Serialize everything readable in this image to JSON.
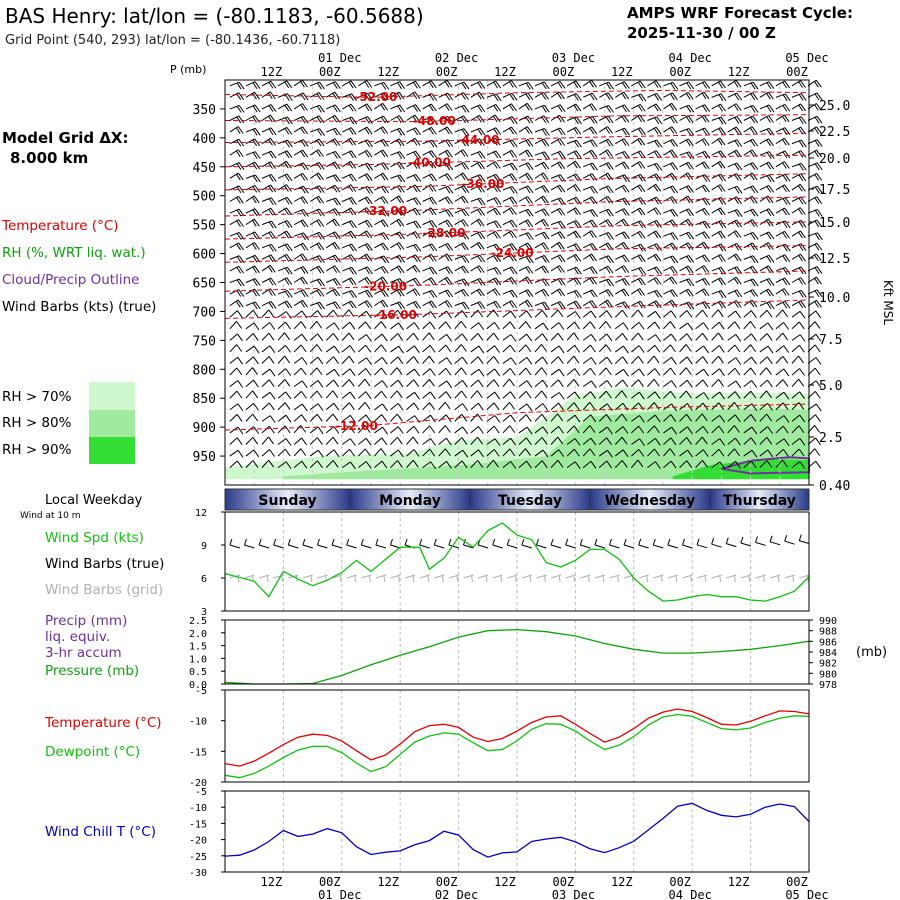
{
  "header": {
    "title": "BAS Henry:  lat/lon = (-80.1183, -60.5688)",
    "subtitle": "Grid Point (540, 293) lat/lon = (-80.1436, -60.7118)",
    "cycle_line1": "AMPS WRF Forecast Cycle:",
    "cycle_line2": "2025-11-30 / 00  Z"
  },
  "left_panel": {
    "model_grid_line1": "Model Grid ΔX:",
    "model_grid_line2": "8.000 km",
    "legend_temperature": "Temperature (°C)",
    "legend_rh": "RH (%, WRT liq. wat.)",
    "legend_cloud": "Cloud/Precip Outline",
    "legend_wind": "Wind Barbs (kts) (true)",
    "rh_70": "RH > 70%",
    "rh_80": "RH > 80%",
    "rh_90": "RH > 90%"
  },
  "colors": {
    "temperature": "#e00000",
    "dewpoint": "#10c010",
    "rh_line": "#10a010",
    "cloud": "#7030a0",
    "windchill": "#0000c0",
    "rh70": "#cff8cf",
    "rh80": "#a0eaa0",
    "rh90": "#33dd33",
    "grid_barbs": "#b0b0b0"
  },
  "time_axis": {
    "top_hours": [
      "12Z",
      "00Z",
      "12Z",
      "00Z",
      "12Z",
      "00Z",
      "12Z",
      "00Z",
      "12Z",
      "00Z"
    ],
    "top_dates": [
      "01 Dec",
      "02 Dec",
      "03 Dec",
      "04 Dec",
      "05 Dec"
    ],
    "bottom_hours": [
      "12Z",
      "00Z",
      "12Z",
      "00Z",
      "12Z",
      "00Z",
      "12Z",
      "00Z",
      "12Z",
      "00Z"
    ],
    "bottom_dates": [
      "01 Dec",
      "02 Dec",
      "03 Dec",
      "04 Dec",
      "05 Dec"
    ]
  },
  "weekday_band": {
    "label": "Local Weekday",
    "sublabel": "Wind at 10 m",
    "days": [
      "Sunday",
      "Monday",
      "Tuesday",
      "Wednesday",
      "Thursday"
    ]
  },
  "chart_data": [
    {
      "type": "cross-section",
      "id": "main",
      "ylabel": "P (mb)",
      "right_axis_label": "Kft MSL",
      "pressure_ticks": [
        350,
        400,
        450,
        500,
        550,
        600,
        650,
        700,
        750,
        800,
        850,
        900,
        950
      ],
      "kft_ticks": [
        "25.0",
        "22.5",
        "20.0",
        "17.5",
        "15.0",
        "12.5",
        "10.0",
        "7.5",
        "5.0",
        "2.5",
        "0.40"
      ],
      "x_hours_range": [
        0,
        120
      ],
      "temperature_contours": [
        {
          "label": "-52.00",
          "label_hour": 31,
          "points": [
            [
              0,
              325
            ],
            [
              30,
              330
            ],
            [
              60,
              322
            ],
            [
              90,
              318
            ],
            [
              120,
              322
            ]
          ]
        },
        {
          "label": "-48.00",
          "label_hour": 43,
          "points": [
            [
              0,
              370
            ],
            [
              40,
              372
            ],
            [
              80,
              362
            ],
            [
              120,
              360
            ]
          ]
        },
        {
          "label": "-44.00",
          "label_hour": 52,
          "points": [
            [
              0,
              408
            ],
            [
              40,
              406
            ],
            [
              80,
              398
            ],
            [
              120,
              392
            ]
          ]
        },
        {
          "label": "-40.00",
          "label_hour": 42,
          "points": [
            [
              0,
              450
            ],
            [
              30,
              446
            ],
            [
              70,
              436
            ],
            [
              120,
              430
            ]
          ]
        },
        {
          "label": "-36.00",
          "label_hour": 53,
          "points": [
            [
              0,
              490
            ],
            [
              40,
              484
            ],
            [
              80,
              470
            ],
            [
              120,
              462
            ]
          ]
        },
        {
          "label": "-32.00",
          "label_hour": 33,
          "points": [
            [
              0,
              535
            ],
            [
              40,
              525
            ],
            [
              80,
              510
            ],
            [
              120,
              502
            ]
          ]
        },
        {
          "label": "-28.00",
          "label_hour": 45,
          "points": [
            [
              0,
              575
            ],
            [
              40,
              566
            ],
            [
              80,
              552
            ],
            [
              120,
              545
            ]
          ]
        },
        {
          "label": "-24.00",
          "label_hour": 59,
          "points": [
            [
              0,
              615
            ],
            [
              40,
              606
            ],
            [
              80,
              592
            ],
            [
              120,
              586
            ]
          ]
        },
        {
          "label": "-20.00",
          "label_hour": 33,
          "points": [
            [
              0,
              665
            ],
            [
              40,
              655
            ],
            [
              80,
              640
            ],
            [
              120,
              630
            ]
          ]
        },
        {
          "label": "-16.00",
          "label_hour": 35,
          "points": [
            [
              0,
              712
            ],
            [
              40,
              705
            ],
            [
              80,
              692
            ],
            [
              120,
              680
            ]
          ]
        },
        {
          "label": "-12.00",
          "label_hour": 27,
          "points": [
            [
              0,
              905
            ],
            [
              30,
              897
            ],
            [
              60,
              875
            ],
            [
              90,
              866
            ],
            [
              120,
              860
            ]
          ]
        }
      ],
      "rh70_region": [
        [
          0,
          970
        ],
        [
          20,
          950
        ],
        [
          38,
          945
        ],
        [
          48,
          922
        ],
        [
          60,
          918
        ],
        [
          72,
          845
        ],
        [
          82,
          832
        ],
        [
          96,
          842
        ],
        [
          108,
          840
        ],
        [
          120,
          842
        ],
        [
          120,
          990
        ],
        [
          0,
          990
        ]
      ],
      "rh80_region": [
        [
          12,
          985
        ],
        [
          30,
          975
        ],
        [
          50,
          965
        ],
        [
          66,
          950
        ],
        [
          75,
          882
        ],
        [
          90,
          872
        ],
        [
          110,
          868
        ],
        [
          120,
          870
        ],
        [
          120,
          990
        ],
        [
          12,
          990
        ]
      ],
      "rh90_region": [
        [
          92,
          985
        ],
        [
          100,
          965
        ],
        [
          112,
          955
        ],
        [
          120,
          957
        ],
        [
          120,
          990
        ],
        [
          92,
          990
        ]
      ],
      "cloud_outline": [
        [
          102,
          972
        ],
        [
          108,
          958
        ],
        [
          116,
          952
        ],
        [
          120,
          954
        ],
        [
          120,
          978
        ],
        [
          108,
          980
        ]
      ]
    },
    {
      "type": "line",
      "id": "wind",
      "ylim": [
        3,
        12
      ],
      "yticks": [
        "12",
        "9",
        "6",
        "3"
      ],
      "legend": [
        "Wind Spd (kts)",
        "Wind Barbs (true)",
        "Wind Barbs (grid)"
      ],
      "series": [
        {
          "name": "Wind Spd (kts)",
          "x": [
            0,
            6,
            9,
            12,
            15,
            18,
            21,
            24,
            27,
            30,
            36,
            40,
            42,
            45,
            48,
            51,
            54,
            57,
            60,
            63,
            66,
            69,
            72,
            75,
            78,
            81,
            84,
            87,
            90,
            93,
            96,
            99,
            102,
            105,
            108,
            111,
            114,
            117,
            120
          ],
          "values": [
            6.4,
            5.7,
            4.3,
            6.6,
            5.9,
            5.3,
            5.8,
            6.5,
            7.6,
            6.6,
            8.8,
            8.8,
            6.8,
            7.8,
            9.7,
            8.8,
            10.3,
            11.0,
            9.9,
            9.5,
            7.4,
            7.0,
            7.6,
            8.6,
            8.6,
            7.7,
            6.0,
            4.8,
            3.9,
            4.0,
            4.3,
            4.5,
            4.3,
            4.3,
            4.0,
            3.9,
            4.3,
            4.8,
            6.1
          ]
        }
      ]
    },
    {
      "type": "line",
      "id": "precip_pressure",
      "ylim": [
        0.0,
        2.5
      ],
      "yticks": [
        "2.5",
        "2.0",
        "1.5",
        "1.0",
        "0.5",
        "0.0"
      ],
      "right_yticks": [
        "990",
        "988",
        "986",
        "984",
        "982",
        "980",
        "978"
      ],
      "right_ylim": [
        978,
        990
      ],
      "right_label": "(mb)",
      "legend": [
        "Precip (mm)",
        "liq. equiv.",
        "3-hr accum",
        "Pressure (mb)"
      ],
      "series": [
        {
          "name": "Pressure (mb)",
          "x": [
            0,
            6,
            12,
            18,
            24,
            30,
            36,
            42,
            48,
            54,
            60,
            66,
            72,
            78,
            84,
            90,
            96,
            102,
            108,
            114,
            120
          ],
          "values": [
            978.3,
            978.0,
            978.0,
            978.1,
            979.6,
            981.6,
            983.4,
            985.0,
            986.8,
            988.0,
            988.2,
            987.8,
            987.0,
            985.6,
            984.5,
            983.8,
            983.8,
            984.1,
            984.5,
            985.2,
            986.0
          ]
        }
      ]
    },
    {
      "type": "line",
      "id": "temperature",
      "ylim": [
        -20,
        -5
      ],
      "yticks": [
        "-5",
        "-10",
        "-15",
        "-20"
      ],
      "legend": [
        "Temperature (°C)",
        "Dewpoint (°C)"
      ],
      "series": [
        {
          "name": "Temperature (°C)",
          "x": [
            0,
            3,
            6,
            9,
            12,
            15,
            18,
            21,
            24,
            27,
            30,
            33,
            36,
            39,
            42,
            45,
            48,
            51,
            54,
            57,
            60,
            63,
            66,
            69,
            72,
            75,
            78,
            81,
            84,
            87,
            90,
            93,
            96,
            99,
            102,
            105,
            108,
            111,
            114,
            117,
            120
          ],
          "values": [
            -17.0,
            -17.4,
            -16.6,
            -15.3,
            -13.9,
            -12.7,
            -12.2,
            -12.4,
            -13.3,
            -14.9,
            -16.4,
            -15.6,
            -13.8,
            -11.8,
            -10.8,
            -10.6,
            -11.1,
            -12.7,
            -13.4,
            -12.9,
            -11.7,
            -10.3,
            -9.4,
            -9.2,
            -10.6,
            -12.1,
            -13.5,
            -12.7,
            -11.3,
            -9.6,
            -8.6,
            -8.1,
            -8.5,
            -9.5,
            -10.6,
            -10.7,
            -10.1,
            -9.2,
            -8.4,
            -8.5,
            -8.9
          ]
        },
        {
          "name": "Dewpoint (°C)",
          "x": [
            0,
            3,
            6,
            9,
            12,
            15,
            18,
            21,
            24,
            27,
            30,
            33,
            36,
            39,
            42,
            45,
            48,
            51,
            54,
            57,
            60,
            63,
            66,
            69,
            72,
            75,
            78,
            81,
            84,
            87,
            90,
            93,
            96,
            99,
            102,
            105,
            108,
            111,
            114,
            117,
            120
          ],
          "values": [
            -18.9,
            -19.3,
            -18.6,
            -17.4,
            -16.0,
            -14.8,
            -14.2,
            -14.2,
            -15.2,
            -16.9,
            -18.3,
            -17.5,
            -15.5,
            -13.5,
            -12.5,
            -12.0,
            -12.2,
            -13.6,
            -14.9,
            -14.7,
            -13.3,
            -11.4,
            -10.5,
            -10.6,
            -11.7,
            -13.3,
            -14.7,
            -14.0,
            -12.6,
            -10.7,
            -9.4,
            -9.0,
            -9.3,
            -10.3,
            -11.3,
            -11.5,
            -11.2,
            -10.3,
            -9.6,
            -9.2,
            -9.3
          ]
        }
      ]
    },
    {
      "type": "line",
      "id": "windchill",
      "ylim": [
        -30,
        -5
      ],
      "yticks": [
        "-5",
        "-10",
        "-15",
        "-20",
        "-25",
        "-30"
      ],
      "legend": [
        "Wind Chill T (°C)"
      ],
      "series": [
        {
          "name": "Wind Chill T (°C)",
          "x": [
            0,
            3,
            6,
            9,
            12,
            15,
            18,
            21,
            24,
            27,
            30,
            33,
            36,
            39,
            42,
            45,
            48,
            51,
            54,
            57,
            60,
            63,
            66,
            69,
            72,
            75,
            78,
            81,
            84,
            87,
            90,
            93,
            96,
            99,
            102,
            105,
            108,
            111,
            114,
            117,
            120
          ],
          "values": [
            -25.1,
            -24.8,
            -23.2,
            -20.6,
            -17.2,
            -19.0,
            -18.3,
            -16.6,
            -17.9,
            -22.2,
            -24.6,
            -23.9,
            -23.5,
            -21.6,
            -20.3,
            -17.4,
            -18.6,
            -23.1,
            -25.4,
            -24.1,
            -23.8,
            -20.6,
            -19.8,
            -19.3,
            -20.7,
            -22.8,
            -24.0,
            -22.5,
            -20.5,
            -17.0,
            -13.5,
            -9.7,
            -8.8,
            -11.0,
            -12.5,
            -13.0,
            -12.2,
            -10.0,
            -9.0,
            -9.8,
            -14.4
          ]
        }
      ]
    }
  ]
}
